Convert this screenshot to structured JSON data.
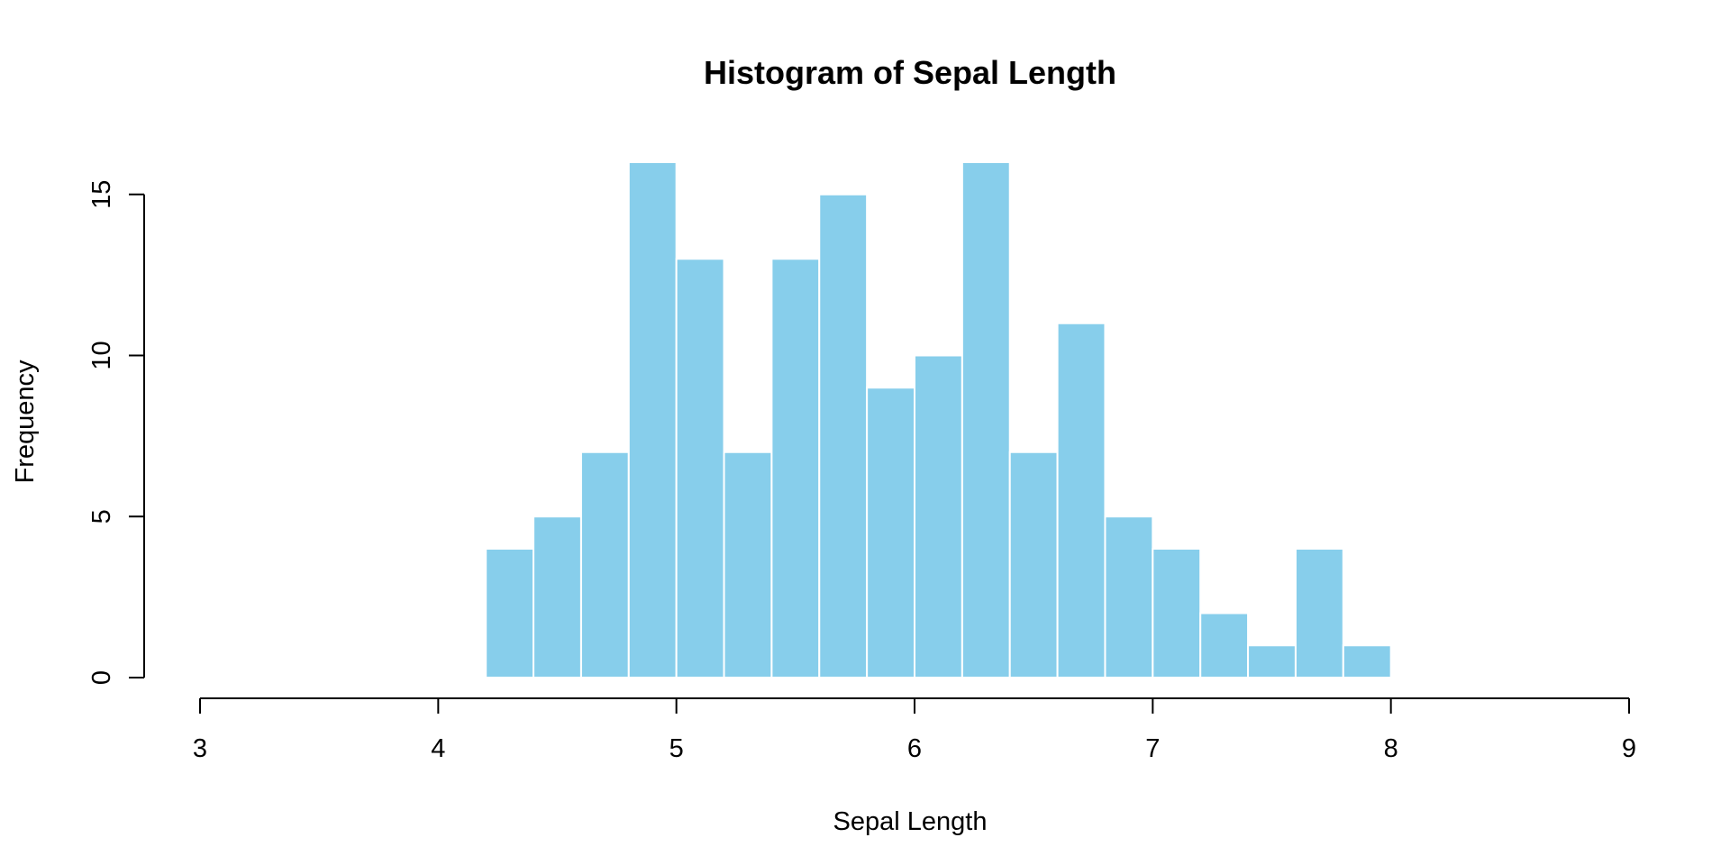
{
  "chart_data": {
    "type": "bar",
    "title": "Histogram of Sepal Length",
    "xlabel": "Sepal Length",
    "ylabel": "Frequency",
    "xlim": [
      3,
      9
    ],
    "ylim": [
      0,
      16
    ],
    "x_ticks": [
      "3",
      "4",
      "5",
      "6",
      "7",
      "8",
      "9"
    ],
    "y_ticks": [
      "0",
      "5",
      "10",
      "15"
    ],
    "bin_width": 0.2,
    "bins": [
      {
        "start": 4.2,
        "end": 4.4,
        "value": 4
      },
      {
        "start": 4.4,
        "end": 4.6,
        "value": 5
      },
      {
        "start": 4.6,
        "end": 4.8,
        "value": 7
      },
      {
        "start": 4.8,
        "end": 5.0,
        "value": 16
      },
      {
        "start": 5.0,
        "end": 5.2,
        "value": 13
      },
      {
        "start": 5.2,
        "end": 5.4,
        "value": 7
      },
      {
        "start": 5.4,
        "end": 5.6,
        "value": 13
      },
      {
        "start": 5.6,
        "end": 5.8,
        "value": 15
      },
      {
        "start": 5.8,
        "end": 6.0,
        "value": 9
      },
      {
        "start": 6.0,
        "end": 6.2,
        "value": 10
      },
      {
        "start": 6.2,
        "end": 6.4,
        "value": 16
      },
      {
        "start": 6.4,
        "end": 6.6,
        "value": 7
      },
      {
        "start": 6.6,
        "end": 6.8,
        "value": 11
      },
      {
        "start": 6.8,
        "end": 7.0,
        "value": 5
      },
      {
        "start": 7.0,
        "end": 7.2,
        "value": 4
      },
      {
        "start": 7.2,
        "end": 7.4,
        "value": 2
      },
      {
        "start": 7.4,
        "end": 7.6,
        "value": 1
      },
      {
        "start": 7.6,
        "end": 7.8,
        "value": 4
      },
      {
        "start": 7.8,
        "end": 8.0,
        "value": 1
      }
    ],
    "bar_color": "#87CEEB",
    "bar_border_color": "#ffffff",
    "grid": false,
    "legend": false
  }
}
